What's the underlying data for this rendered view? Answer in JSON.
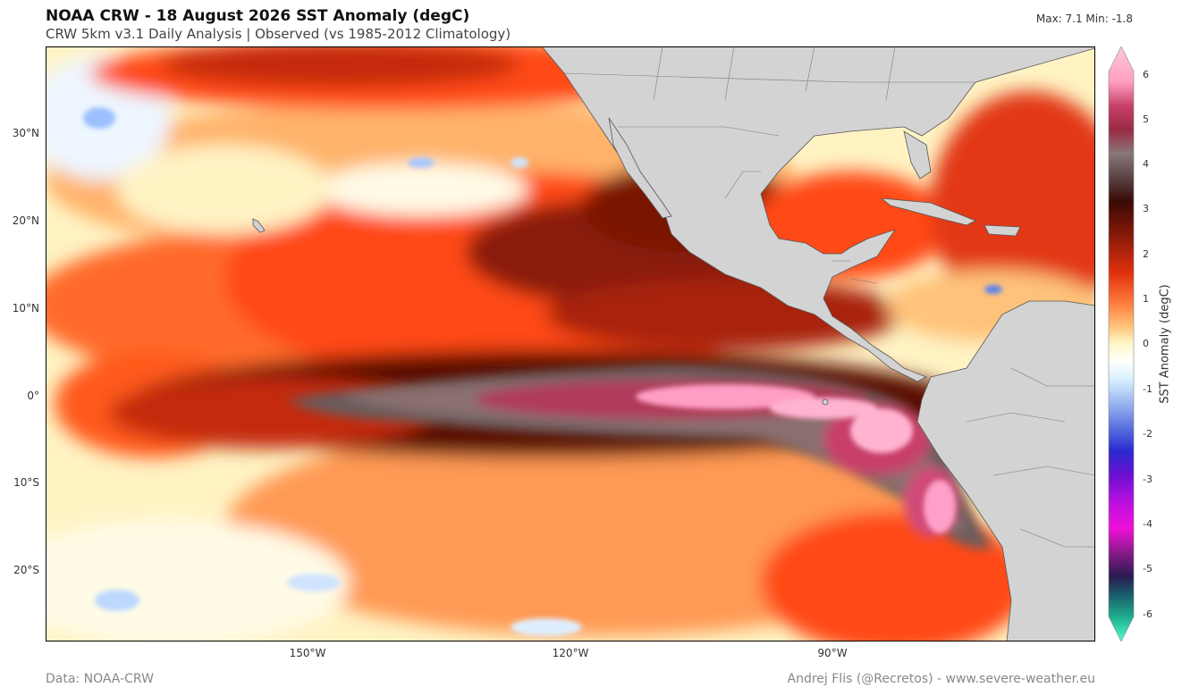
{
  "title": "NOAA CRW - 18 August 2026 SST Anomaly (degC)",
  "subtitle": "CRW 5km v3.1 Daily Analysis  |  Observed (vs 1985-2012 Climatology)",
  "stats": "Max: 7.1  Min: -1.8",
  "lat_labels": [
    "30°N",
    "20°N",
    "10°N",
    "0°",
    "10°S",
    "20°S"
  ],
  "lon_labels": [
    "150°W",
    "120°W",
    "90°W"
  ],
  "colorbar": {
    "title": "SST Anomaly (degC)",
    "ticks": [
      "6",
      "5",
      "4",
      "3",
      "2",
      "1",
      "0",
      "-1",
      "-2",
      "-3",
      "-4",
      "-5",
      "-6"
    ],
    "range": [
      -6,
      6
    ]
  },
  "credits": {
    "left": "Data: NOAA-CRW",
    "right": "Andrej Flis (@Recretos) - www.severe-weather.eu"
  },
  "map_extent": {
    "lon_range": [
      -180,
      -60
    ],
    "lat_range": [
      -28,
      40
    ]
  },
  "colors": {
    "land": "#d3d3d3",
    "cold_anomaly": "#4a6fe0",
    "neutral": "#ffffff",
    "warm_anomaly": "#ff4a14",
    "strong_warm": "#3d0a05",
    "extreme_warm": "#ff9ec4"
  }
}
